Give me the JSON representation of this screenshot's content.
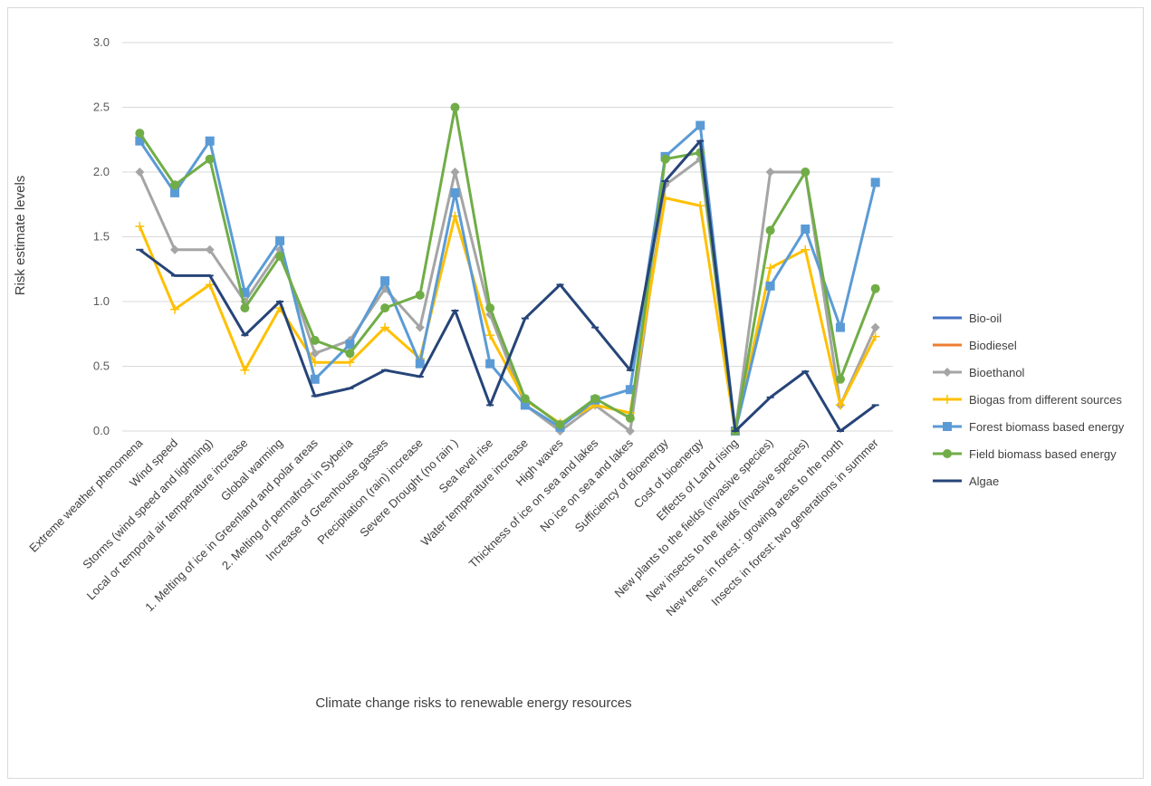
{
  "chart_data": {
    "type": "line",
    "title": "",
    "xlabel": "Climate change risks to renewable energy resources",
    "ylabel": "Risk estimate levels",
    "ylim": [
      0,
      3
    ],
    "yticks": [
      "0.0",
      "0.5",
      "1.0",
      "1.5",
      "2.0",
      "2.5",
      "3.0"
    ],
    "grid": true,
    "legend": "right",
    "categories": [
      "Extreme weather phenomena",
      "Wind speed",
      "Storms (wind speed and lightning)",
      "Local or temporal air temperature increase",
      "Global warming",
      "1. Melting of ice in Greenland and polar areas",
      "2. Melting of permafrost in Syberia",
      "Increase of Greenhouse gasses",
      "Precipitation (rain) increase",
      "Severe Drought (no rain )",
      "Sea level rise",
      "Water temperature increase",
      "High waves",
      "Thickness of ice on sea and lakes",
      "No ice on sea and lakes",
      "Sufficiency of Bioenergy",
      "Cost of bioenergy",
      "Effects of Land rising",
      "New plants to the fields (invasive species)",
      "New insects to the fields (invasive species)",
      "New trees in forest : growing areas to the north",
      "Insects in forest: two generations in summer"
    ],
    "series": [
      {
        "name": "Bio-oil",
        "color": "#4472c4",
        "marker": "none",
        "values": [
          null,
          null,
          null,
          null,
          null,
          null,
          null,
          null,
          null,
          null,
          null,
          null,
          null,
          null,
          null,
          null,
          null,
          null,
          null,
          null,
          null,
          null
        ]
      },
      {
        "name": " Biodiesel",
        "color": "#ed7d31",
        "marker": "none",
        "values": [
          null,
          null,
          null,
          null,
          null,
          null,
          null,
          null,
          null,
          null,
          null,
          null,
          null,
          null,
          null,
          null,
          null,
          null,
          null,
          null,
          null,
          null
        ]
      },
      {
        "name": "Bioethanol",
        "color": "#a5a5a5",
        "marker": "diamond",
        "values": [
          2.0,
          1.4,
          1.4,
          1.0,
          1.4,
          0.6,
          0.7,
          1.1,
          0.8,
          2.0,
          0.9,
          0.2,
          0.0,
          0.2,
          0.0,
          1.9,
          2.1,
          0.0,
          2.0,
          2.0,
          0.2,
          0.8
        ]
      },
      {
        "name": "Biogas from different sources",
        "color": "#ffc000",
        "marker": "plus",
        "values": [
          1.58,
          0.94,
          1.13,
          0.47,
          0.95,
          0.53,
          0.53,
          0.8,
          0.56,
          1.66,
          0.74,
          0.24,
          0.06,
          0.2,
          0.14,
          1.8,
          1.74,
          0.0,
          1.26,
          1.4,
          0.2,
          0.73
        ]
      },
      {
        "name": "Forest biomass based energy",
        "color": "#5b9bd5",
        "marker": "square",
        "values": [
          2.24,
          1.84,
          2.24,
          1.07,
          1.47,
          0.4,
          0.67,
          1.16,
          0.52,
          1.84,
          0.52,
          0.2,
          0.03,
          0.24,
          0.32,
          2.12,
          2.36,
          0.0,
          1.12,
          1.56,
          0.8,
          1.92
        ]
      },
      {
        "name": "Field biomass based energy",
        "color": "#70ad47",
        "marker": "circle",
        "values": [
          2.3,
          1.9,
          2.1,
          0.95,
          1.35,
          0.7,
          0.6,
          0.95,
          1.05,
          2.5,
          0.95,
          0.25,
          0.05,
          0.25,
          0.1,
          2.1,
          2.15,
          0.0,
          1.55,
          2.0,
          0.4,
          1.1
        ]
      },
      {
        "name": "Algae",
        "color": "#264478",
        "marker": "dash",
        "values": [
          1.4,
          1.2,
          1.2,
          0.74,
          1.0,
          0.27,
          0.33,
          0.47,
          0.42,
          0.93,
          0.2,
          0.87,
          1.13,
          0.8,
          0.47,
          1.93,
          2.24,
          0.0,
          0.26,
          0.46,
          0.0,
          0.2
        ]
      }
    ]
  }
}
